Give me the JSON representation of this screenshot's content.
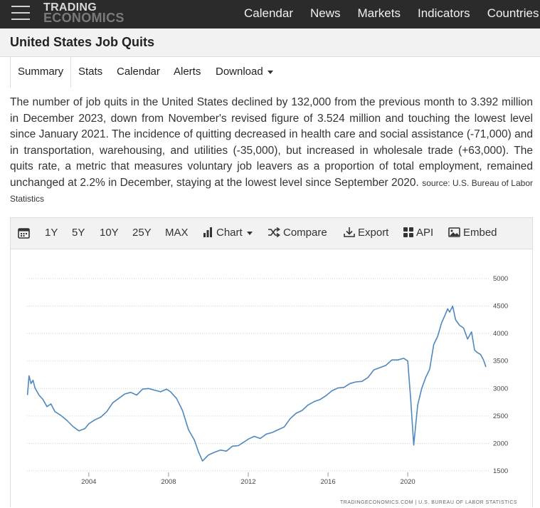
{
  "brand": {
    "line1": "TRADING",
    "line2": "ECONOMICS"
  },
  "nav": [
    "Calendar",
    "News",
    "Markets",
    "Indicators",
    "Countries"
  ],
  "page_title": "United States Job Quits",
  "tabs": [
    "Summary",
    "Stats",
    "Calendar",
    "Alerts",
    "Download"
  ],
  "summary": {
    "text": "The number of job quits in the United States declined by 132,000 from the previous month to 3.392 million in December 2023, down from November's revised figure of 3.524 million and touching the lowest level since January 2021. The incidence of quitting decreased in health care and social assistance (-71,000) and in transportation, warehousing, and utilities (-35,000), but increased in wholesale trade (+63,000). The quits rate, a metric that measures voluntary job leavers as a proportion of total employment, remained unchanged at 2.2% in December, staying at the lowest level since September 2020.",
    "source": "source: U.S. Bureau of Labor Statistics"
  },
  "toolbar": {
    "ranges": [
      "1Y",
      "5Y",
      "10Y",
      "25Y",
      "MAX"
    ],
    "chart": "Chart",
    "compare": "Compare",
    "export": "Export",
    "api": "API",
    "embed": "Embed"
  },
  "chart_data": {
    "type": "line",
    "title": "",
    "xlabel": "",
    "ylabel": "",
    "color": "#4f88bf",
    "x_ticks": [
      "2004",
      "2008",
      "2012",
      "2016",
      "2020"
    ],
    "y_ticks": [
      5000,
      4500,
      4000,
      3500,
      3000,
      2500,
      2000,
      1500
    ],
    "ylim": [
      1500,
      5000
    ],
    "xlim": [
      2000.9,
      2024.1
    ],
    "y_axis_side": "right",
    "grid": "horizontal-dotted",
    "credit": "TRADINGECONOMICS.COM | U.S. BUREAU OF LABOR STATISTICS",
    "series": [
      {
        "x": [
          2000.92,
          2001.0,
          2001.1,
          2001.2,
          2001.3,
          2001.5,
          2001.7,
          2001.9,
          2002.1,
          2002.3,
          2002.6,
          2002.9,
          2003.2,
          2003.5,
          2003.8,
          2004.0,
          2004.3,
          2004.6,
          2004.9,
          2005.2,
          2005.5,
          2005.8,
          2006.1,
          2006.4,
          2006.7,
          2007.0,
          2007.3,
          2007.6,
          2007.9,
          2008.1,
          2008.4,
          2008.7,
          2009.0,
          2009.3,
          2009.5,
          2009.7,
          2010.0,
          2010.3,
          2010.6,
          2010.9,
          2011.2,
          2011.5,
          2011.8,
          2012.0,
          2012.3,
          2012.6,
          2012.9,
          2013.2,
          2013.5,
          2013.8,
          2014.1,
          2014.4,
          2014.7,
          2015.0,
          2015.3,
          2015.6,
          2015.9,
          2016.2,
          2016.5,
          2016.8,
          2017.1,
          2017.4,
          2017.7,
          2018.0,
          2018.3,
          2018.6,
          2018.9,
          2019.2,
          2019.5,
          2019.8,
          2020.0,
          2020.15,
          2020.3,
          2020.5,
          2020.7,
          2020.9,
          2021.1,
          2021.3,
          2021.5,
          2021.7,
          2021.85,
          2022.0,
          2022.1,
          2022.25,
          2022.4,
          2022.6,
          2022.8,
          2023.0,
          2023.2,
          2023.35,
          2023.5,
          2023.65,
          2023.8,
          2023.92
        ],
        "y": [
          2880,
          3230,
          3090,
          3150,
          3010,
          2880,
          2800,
          2670,
          2720,
          2580,
          2510,
          2420,
          2310,
          2230,
          2270,
          2360,
          2430,
          2480,
          2580,
          2740,
          2820,
          2900,
          2930,
          2880,
          2990,
          3000,
          2970,
          2940,
          2990,
          2940,
          2820,
          2600,
          2250,
          2060,
          1850,
          1680,
          1790,
          1840,
          1880,
          1860,
          1950,
          1960,
          2030,
          2080,
          2130,
          2090,
          2170,
          2200,
          2250,
          2300,
          2450,
          2550,
          2600,
          2700,
          2760,
          2800,
          2870,
          2960,
          3010,
          3020,
          3090,
          3120,
          3130,
          3200,
          3340,
          3380,
          3420,
          3520,
          3520,
          3550,
          3500,
          2800,
          1970,
          2700,
          3000,
          3200,
          3350,
          3800,
          3950,
          4200,
          4320,
          4450,
          4390,
          4500,
          4250,
          4150,
          4100,
          3900,
          4030,
          3700,
          3650,
          3620,
          3520,
          3392
        ]
      }
    ]
  }
}
